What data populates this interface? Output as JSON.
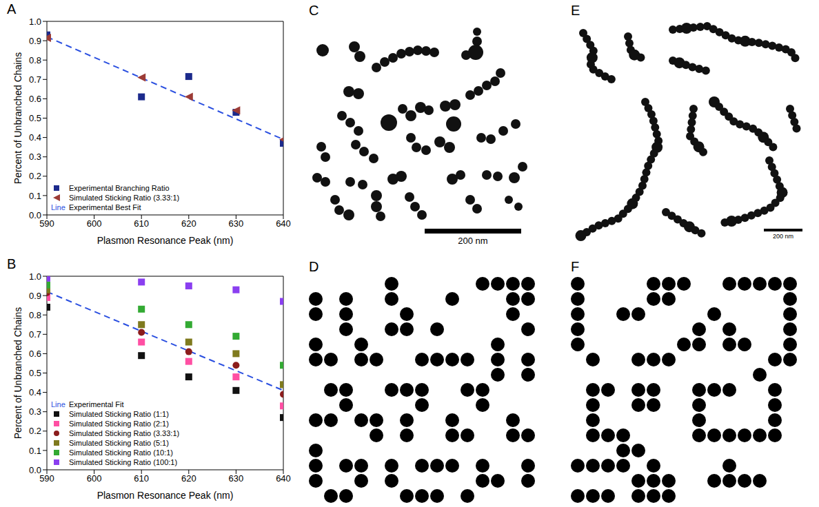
{
  "chart_data": [
    {
      "panel": "A",
      "type": "scatter",
      "x_label": "Plasmon Resonance Peak (nm)",
      "y_label": "Percent of Unbranched Chains",
      "xlim": [
        590,
        640
      ],
      "xticks": [
        590,
        600,
        610,
        620,
        630,
        640
      ],
      "ylim": [
        0,
        1
      ],
      "yticks": [
        {
          "value": 0,
          "label": "0.0"
        },
        0.1,
        0.2,
        0.3,
        0.4,
        0.5,
        0.6,
        0.7,
        0.8,
        0.9,
        {
          "value": 1,
          "label": "1.0"
        }
      ],
      "grid": false,
      "legend": "lower left",
      "series": [
        {
          "name": "Experimental Branching Ratio",
          "color": "#1c2a8c",
          "marker": "square",
          "x": [
            590,
            610,
            620,
            630,
            640
          ],
          "values": [
            0.93,
            0.61,
            0.715,
            0.53,
            0.37
          ]
        },
        {
          "name": "Simulated Sticking Ratio (3.33:1)",
          "color": "#9c3b36",
          "marker": "triangle-left",
          "x": [
            590,
            610,
            620,
            630,
            640
          ],
          "values": [
            0.915,
            0.71,
            0.61,
            0.54,
            0.39
          ]
        },
        {
          "name": "Experimental Best Fit",
          "legend_symbol": "Line",
          "type": "line",
          "line_style": "dashed",
          "color": "#2a4fe0",
          "x": [
            590,
            640
          ],
          "values": [
            0.92,
            0.39
          ]
        }
      ]
    },
    {
      "panel": "B",
      "type": "scatter",
      "x_label": "Plasmon Resonance Peak (nm)",
      "y_label": "Percent of Unbranched Chains",
      "xlim": [
        590,
        640
      ],
      "xticks": [
        590,
        600,
        610,
        620,
        630,
        640
      ],
      "ylim": [
        0,
        1
      ],
      "yticks": [
        {
          "value": 0,
          "label": "0.0"
        },
        0.1,
        0.2,
        0.3,
        0.4,
        0.5,
        0.6,
        0.7,
        0.8,
        0.9,
        {
          "value": 1,
          "label": "1.0"
        }
      ],
      "grid": false,
      "legend": "lower left",
      "series": [
        {
          "name": "Experimental Fit",
          "legend_symbol": "Line",
          "type": "line",
          "line_style": "dashed",
          "color": "#2a4fe0",
          "x": [
            590,
            640
          ],
          "values": [
            0.92,
            0.41
          ]
        },
        {
          "name": "Simulated Sticking Ratio (1:1)",
          "color": "#111111",
          "marker": "square",
          "x": [
            590,
            610,
            620,
            630,
            640
          ],
          "values": [
            0.84,
            0.59,
            0.48,
            0.41,
            0.27
          ]
        },
        {
          "name": "Simulated Sticking Ratio (2:1)",
          "color": "#ff4fa3",
          "marker": "square",
          "x": [
            590,
            610,
            620,
            630,
            640
          ],
          "values": [
            0.89,
            0.66,
            0.56,
            0.48,
            0.33
          ]
        },
        {
          "name": "Simulated Sticking Ratio (3.33:1)",
          "color": "#8b1c1c",
          "marker": "circle",
          "x": [
            590,
            610,
            620,
            630,
            640
          ],
          "values": [
            0.915,
            0.71,
            0.61,
            0.54,
            0.39
          ]
        },
        {
          "name": "Simulated Sticking Ratio (5:1)",
          "color": "#7f7a1e",
          "marker": "square",
          "x": [
            590,
            610,
            620,
            630,
            640
          ],
          "values": [
            0.93,
            0.75,
            0.66,
            0.6,
            0.44
          ]
        },
        {
          "name": "Simulated Sticking Ratio (10:1)",
          "color": "#33aa33",
          "marker": "square",
          "x": [
            590,
            610,
            620,
            630,
            640
          ],
          "values": [
            0.955,
            0.83,
            0.75,
            0.69,
            0.54
          ]
        },
        {
          "name": "Simulated Sticking Ratio (100:1)",
          "color": "#8a3ff0",
          "marker": "square",
          "x": [
            590,
            610,
            620,
            630,
            640
          ],
          "values": [
            0.99,
            0.97,
            0.95,
            0.93,
            0.87
          ]
        }
      ]
    }
  ],
  "images": [
    {
      "panel": "C",
      "scale_bar": "200 nm"
    },
    {
      "panel": "D"
    },
    {
      "panel": "E",
      "scale_bar": "200 nm"
    },
    {
      "panel": "F"
    }
  ]
}
